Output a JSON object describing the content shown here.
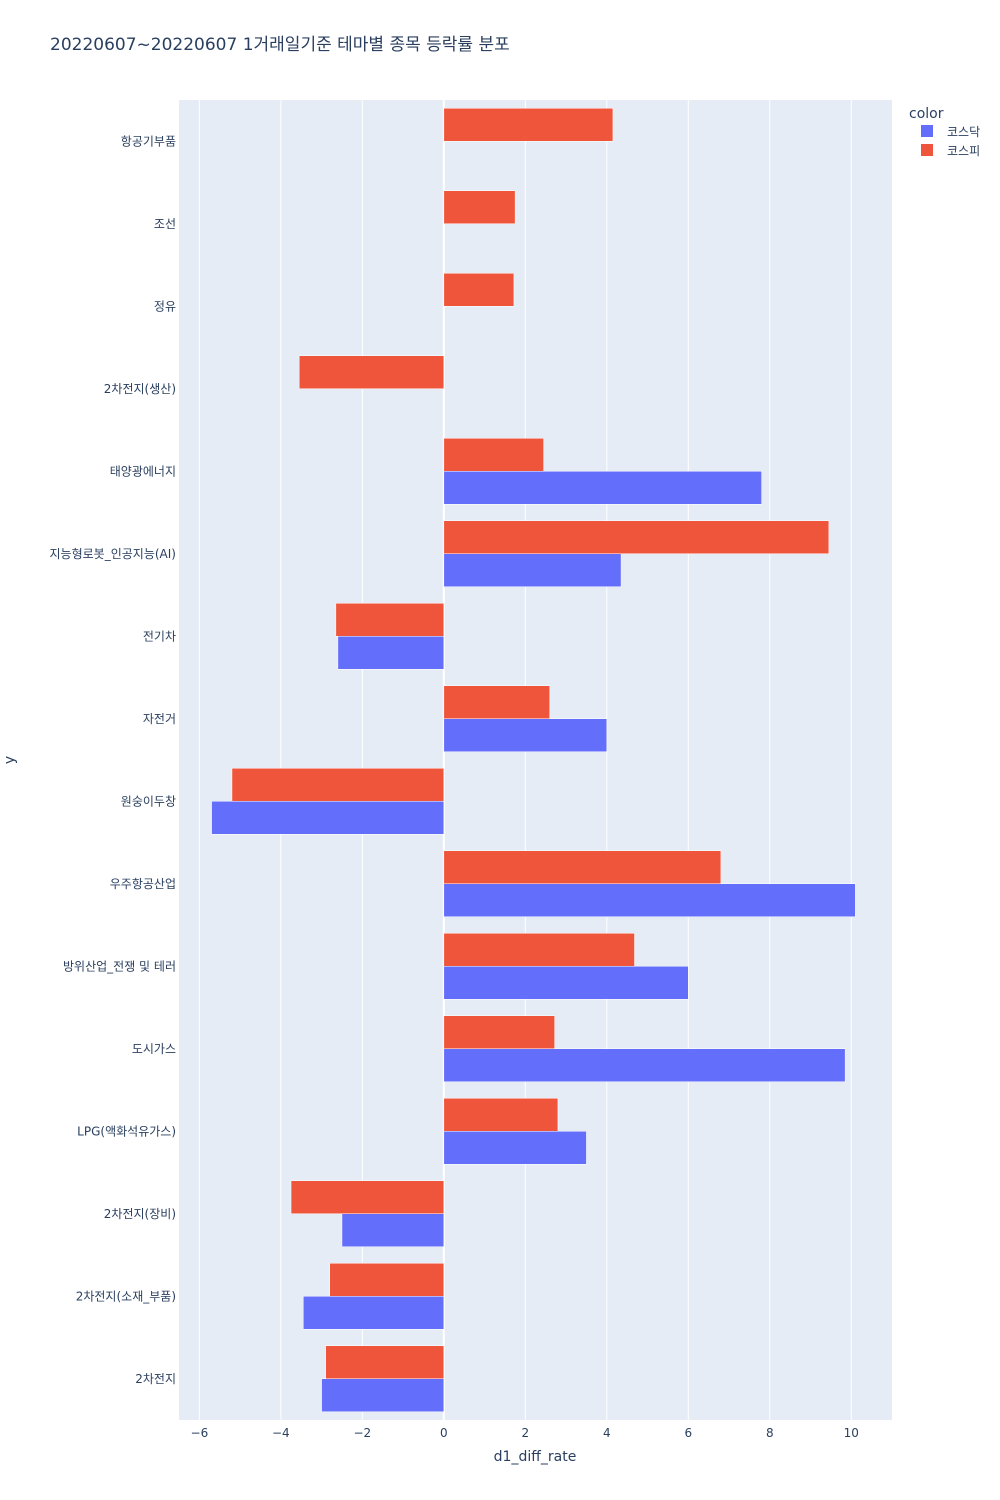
{
  "chart_data": {
    "type": "bar",
    "orientation": "horizontal",
    "barmode": "group",
    "title": "20220607~20220607 1거래일기준 테마별 종목 등락률 분포",
    "xlabel": "d1_diff_rate",
    "ylabel": "y",
    "xlim": [
      -6.5,
      11.0
    ],
    "xticks": [
      -6,
      -4,
      -2,
      0,
      2,
      4,
      6,
      8,
      10
    ],
    "xtick_labels": [
      "−6",
      "−4",
      "−2",
      "0",
      "2",
      "4",
      "6",
      "8",
      "10"
    ],
    "grid": true,
    "legend_title": "color",
    "legend_position": "top-right",
    "categories": [
      "항공기부품",
      "조선",
      "정유",
      "2차전지(생산)",
      "태양광에너지",
      "지능형로봇_인공지능(AI)",
      "전기차",
      "자전거",
      "원숭이두창",
      "우주항공산업",
      "방위산업_전쟁 및 테러",
      "도시가스",
      "LPG(액화석유가스)",
      "2차전지(장비)",
      "2차전지(소재_부품)",
      "2차전지"
    ],
    "series": [
      {
        "name": "코스닥",
        "color": "#636efa",
        "values": [
          null,
          null,
          null,
          null,
          7.8,
          4.35,
          -2.6,
          4.0,
          -5.7,
          10.1,
          6.0,
          9.85,
          3.5,
          -2.5,
          -3.45,
          -3.0
        ]
      },
      {
        "name": "코스피",
        "color": "#ef553b",
        "values": [
          4.15,
          1.75,
          1.72,
          -3.55,
          2.45,
          9.45,
          -2.65,
          2.6,
          -5.2,
          6.8,
          4.68,
          2.72,
          2.8,
          -3.75,
          -2.8,
          -2.9
        ]
      }
    ]
  },
  "colors": {
    "plot_bg": "#e5ecf6",
    "grid": "#ffffff",
    "text": "#2a3f5f"
  }
}
